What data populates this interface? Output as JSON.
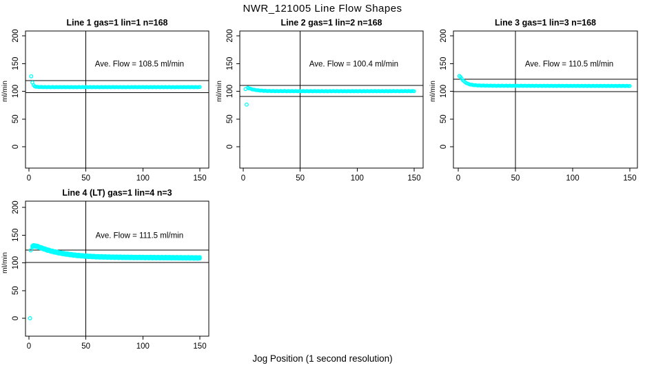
{
  "figure": {
    "title": "NWR_121005  Line Flow Shapes",
    "xlabel": "Jog Position (1 second resolution)",
    "ylabel": "ml/min",
    "background_color": "#FFFFFF",
    "axis_color": "#000000",
    "marker_color": "#00FFFF"
  },
  "chart_data": [
    {
      "type": "scatter",
      "title": "Line 1 gas=1 lin=1 n=168",
      "annotation": "Ave. Flow =  108.5  ml/min",
      "ave_flow": 108.5,
      "ylabel": "ml/min",
      "x_ticks": [
        0,
        50,
        100,
        150
      ],
      "y_ticks": [
        0,
        50,
        100,
        150,
        200
      ],
      "xlim": [
        0,
        150
      ],
      "ylim": [
        0,
        200
      ],
      "vline_x": 50,
      "ref_lines": [
        119.4,
        97.7
      ],
      "outlier_points": [
        [
          2,
          127
        ]
      ],
      "profile_points": [
        [
          3,
          116
        ],
        [
          4,
          111
        ],
        [
          5,
          109
        ],
        [
          6,
          108.3
        ],
        [
          8,
          107.8
        ],
        [
          12,
          107.6
        ],
        [
          20,
          107.5
        ],
        [
          50,
          107.5
        ],
        [
          100,
          107.5
        ],
        [
          150,
          107.5
        ]
      ]
    },
    {
      "type": "scatter",
      "title": "Line 2 gas=1 lin=2 n=168",
      "annotation": "Ave. Flow =  100.4  ml/min",
      "ave_flow": 100.4,
      "ylabel": "ml/min",
      "x_ticks": [
        0,
        50,
        100,
        150
      ],
      "y_ticks": [
        0,
        50,
        100,
        150,
        200
      ],
      "xlim": [
        0,
        150
      ],
      "ylim": [
        0,
        200
      ],
      "vline_x": 50,
      "ref_lines": [
        110.4,
        90.4
      ],
      "outlier_points": [
        [
          2,
          104
        ],
        [
          3,
          76
        ]
      ],
      "profile_points": [
        [
          4,
          106.5
        ],
        [
          5,
          105.5
        ],
        [
          6,
          104.8
        ],
        [
          8,
          103.5
        ],
        [
          10,
          102.6
        ],
        [
          13,
          101.7
        ],
        [
          16,
          101.1
        ],
        [
          20,
          100.7
        ],
        [
          25,
          100.4
        ],
        [
          30,
          100.3
        ],
        [
          50,
          100.2
        ],
        [
          100,
          100.2
        ],
        [
          150,
          100.3
        ]
      ]
    },
    {
      "type": "scatter",
      "title": "Line 3 gas=1 lin=3 n=168",
      "annotation": "Ave. Flow =  110.5  ml/min",
      "ave_flow": 110.5,
      "ylabel": "ml/min",
      "x_ticks": [
        0,
        50,
        100,
        150
      ],
      "y_ticks": [
        0,
        50,
        100,
        150,
        200
      ],
      "xlim": [
        0,
        150
      ],
      "ylim": [
        0,
        200
      ],
      "vline_x": 50,
      "ref_lines": [
        121.6,
        99.5
      ],
      "outlier_points": [
        [
          1,
          127.5
        ]
      ],
      "profile_points": [
        [
          2,
          125.5
        ],
        [
          3,
          123
        ],
        [
          4,
          120
        ],
        [
          5,
          118
        ],
        [
          6,
          116.3
        ],
        [
          8,
          113.9
        ],
        [
          10,
          112.4
        ],
        [
          13,
          111.3
        ],
        [
          16,
          110.7
        ],
        [
          20,
          110.3
        ],
        [
          30,
          110
        ],
        [
          50,
          109.9
        ],
        [
          100,
          109.7
        ],
        [
          150,
          109.6
        ]
      ]
    },
    {
      "type": "scatter",
      "title": "Line 4 (LT) gas=1 lin=4 n=3",
      "annotation": "Ave. Flow =  111.5  ml/min",
      "ave_flow": 111.5,
      "ylabel": "ml/min",
      "x_ticks": [
        0,
        50,
        100,
        150
      ],
      "y_ticks": [
        0,
        50,
        100,
        150,
        200
      ],
      "xlim": [
        0,
        150
      ],
      "ylim": [
        0,
        200
      ],
      "vline_x": 50,
      "ref_lines": [
        122.7,
        100.4
      ],
      "outlier_points": [
        [
          1,
          0
        ],
        [
          1.5,
          122.5
        ]
      ],
      "profile_points": [
        [
          3,
          129.5
        ],
        [
          4,
          130.5
        ],
        [
          6,
          130.3
        ],
        [
          8,
          129
        ],
        [
          10,
          127.5
        ],
        [
          13,
          125.3
        ],
        [
          16,
          123.2
        ],
        [
          20,
          120.9
        ],
        [
          25,
          118.6
        ],
        [
          30,
          116.7
        ],
        [
          36,
          114.9
        ],
        [
          42,
          113.4
        ],
        [
          50,
          112
        ],
        [
          60,
          110.9
        ],
        [
          75,
          110.1
        ],
        [
          90,
          109.7
        ],
        [
          110,
          109.4
        ],
        [
          130,
          109.1
        ],
        [
          150,
          108.8
        ]
      ]
    }
  ]
}
